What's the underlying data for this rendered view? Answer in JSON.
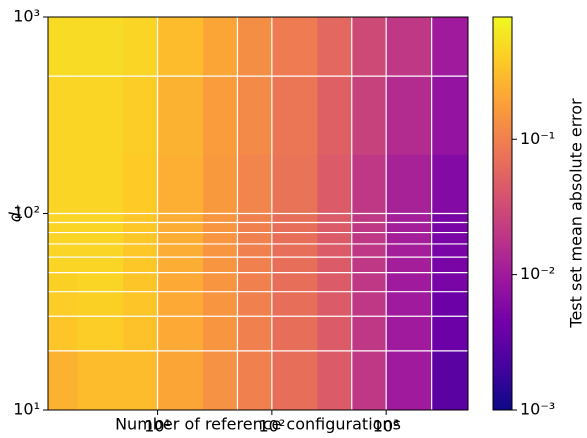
{
  "chart_data": {
    "type": "heatmap",
    "x_label": "Number of reference configurations",
    "y_label": "d₊",
    "colorbar_label": "Test set mean absolute error",
    "colormap": "plasma",
    "xscale": "log",
    "yscale": "log",
    "cscale": "log",
    "xlim": [
      1.1,
      5200
    ],
    "ylim": [
      10,
      1000
    ],
    "clim": [
      0.001,
      0.8
    ],
    "xticks": [
      {
        "value": 10,
        "label": "10¹"
      },
      {
        "value": 100,
        "label": "10²"
      },
      {
        "value": 1000,
        "label": "10³"
      }
    ],
    "yticks": [
      {
        "value": 10,
        "label": "10¹"
      },
      {
        "value": 100,
        "label": "10²"
      },
      {
        "value": 1000,
        "label": "10³"
      }
    ],
    "cticks": [
      {
        "value": 0.001,
        "label": "10⁻³"
      },
      {
        "value": 0.01,
        "label": "10⁻²"
      },
      {
        "value": 0.1,
        "label": "10⁻¹"
      }
    ],
    "xgrid": [
      10,
      50,
      100,
      500,
      1000,
      2500
    ],
    "ygrid": [
      20,
      30,
      40,
      50,
      60,
      70,
      80,
      90,
      100,
      500
    ],
    "grid_color": "#ffffff",
    "xbins": [
      1.1,
      2,
      5,
      10,
      25,
      50,
      100,
      250,
      500,
      1000,
      2500,
      5200
    ],
    "ybins": [
      10,
      20,
      30,
      40,
      50,
      70,
      100,
      200,
      500,
      1000
    ],
    "z": [
      [
        0.25,
        0.3,
        0.3,
        0.2,
        0.14,
        0.1,
        0.07,
        0.045,
        0.02,
        0.01,
        0.003
      ],
      [
        0.35,
        0.4,
        0.33,
        0.22,
        0.15,
        0.1,
        0.07,
        0.045,
        0.02,
        0.01,
        0.004
      ],
      [
        0.4,
        0.42,
        0.35,
        0.22,
        0.15,
        0.1,
        0.07,
        0.045,
        0.02,
        0.01,
        0.004
      ],
      [
        0.42,
        0.45,
        0.35,
        0.22,
        0.15,
        0.1,
        0.07,
        0.045,
        0.02,
        0.01,
        0.005
      ],
      [
        0.45,
        0.45,
        0.36,
        0.23,
        0.15,
        0.1,
        0.07,
        0.045,
        0.02,
        0.011,
        0.005
      ],
      [
        0.45,
        0.45,
        0.36,
        0.23,
        0.15,
        0.1,
        0.07,
        0.045,
        0.02,
        0.011,
        0.005
      ],
      [
        0.45,
        0.45,
        0.38,
        0.24,
        0.16,
        0.11,
        0.075,
        0.045,
        0.02,
        0.012,
        0.006
      ],
      [
        0.45,
        0.45,
        0.4,
        0.25,
        0.17,
        0.12,
        0.08,
        0.05,
        0.025,
        0.015,
        0.008
      ],
      [
        0.5,
        0.5,
        0.45,
        0.3,
        0.2,
        0.13,
        0.09,
        0.06,
        0.03,
        0.02,
        0.01
      ]
    ]
  }
}
